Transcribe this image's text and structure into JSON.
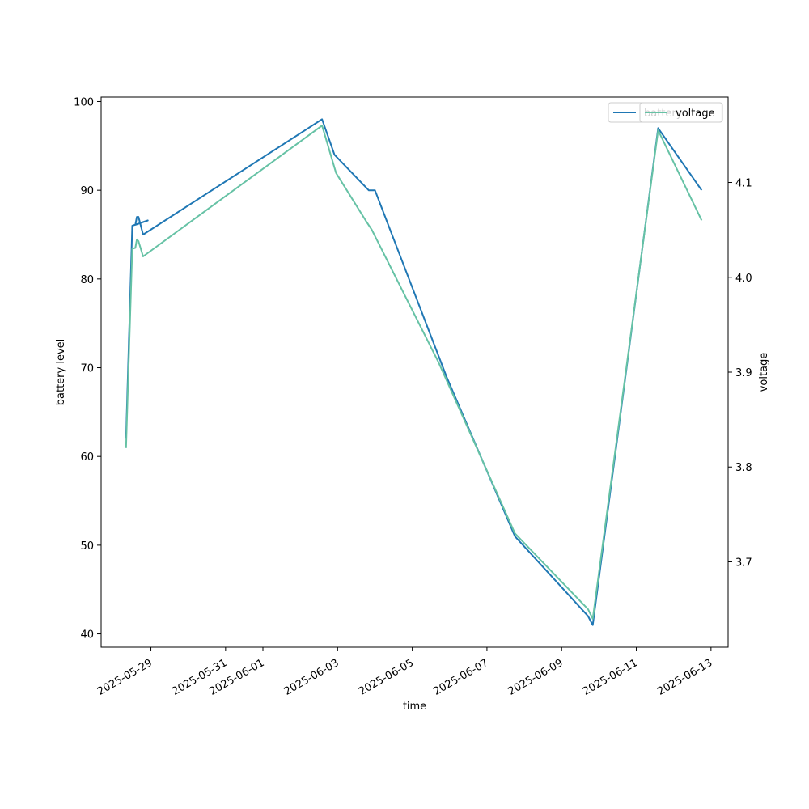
{
  "chart_data": {
    "type": "line",
    "xlabel": "time",
    "ylabel_left": "battery level",
    "ylabel_right": "voltage",
    "xlim": [
      "2025-05-27T16:00",
      "2025-06-13T11:00"
    ],
    "ylim_left": [
      38.5,
      100.5
    ],
    "ylim_right": [
      3.61,
      4.19
    ],
    "x_ticks": [
      "2025-05-29",
      "2025-05-31",
      "2025-06-01",
      "2025-06-03",
      "2025-06-05",
      "2025-06-07",
      "2025-06-09",
      "2025-06-11",
      "2025-06-13"
    ],
    "y_ticks_left": [
      40,
      50,
      60,
      70,
      80,
      90,
      100
    ],
    "y_ticks_right": [
      3.7,
      3.8,
      3.9,
      4.0,
      4.1
    ],
    "grid": false,
    "legend_placement": "top-right",
    "series": [
      {
        "name": "battery",
        "axis": "left",
        "color": "#1f77b4",
        "points": [
          [
            "2025-05-28T08:00",
            62
          ],
          [
            "2025-05-28T12:00",
            86
          ],
          [
            "2025-05-28T22:00",
            86.6
          ],
          [
            "2025-05-28T14:00",
            86.1
          ],
          [
            "2025-05-28T15:00",
            87
          ],
          [
            "2025-05-28T16:00",
            87
          ],
          [
            "2025-05-28T19:00",
            85
          ],
          [
            "2025-06-02T14:00",
            98
          ],
          [
            "2025-06-02T22:00",
            94
          ],
          [
            "2025-06-03T20:00",
            90
          ],
          [
            "2025-06-04T00:00",
            90
          ],
          [
            "2025-06-05T22:00",
            69
          ],
          [
            "2025-06-07T18:00",
            51
          ],
          [
            "2025-06-09T17:00",
            42
          ],
          [
            "2025-06-09T20:00",
            41
          ],
          [
            "2025-06-11T14:00",
            97
          ],
          [
            "2025-06-12T18:00",
            90
          ]
        ]
      },
      {
        "name": "voltage",
        "axis": "right",
        "color": "#66c2a5",
        "points": [
          [
            "2025-05-28T08:00",
            3.82
          ],
          [
            "2025-05-28T12:00",
            4.03
          ],
          [
            "2025-05-28T14:00",
            4.031
          ],
          [
            "2025-05-28T15:00",
            4.04
          ],
          [
            "2025-05-28T16:00",
            4.038
          ],
          [
            "2025-05-28T19:00",
            4.022
          ],
          [
            "2025-06-02T14:00",
            4.16
          ],
          [
            "2025-06-02T23:00",
            4.11
          ],
          [
            "2025-06-03T18:00",
            4.06
          ],
          [
            "2025-06-03T22:00",
            4.05
          ],
          [
            "2025-06-05T17:00",
            3.91
          ],
          [
            "2025-06-07T18:00",
            3.73
          ],
          [
            "2025-06-09T17:00",
            3.65
          ],
          [
            "2025-06-09T20:00",
            3.64
          ],
          [
            "2025-06-11T14:00",
            4.155
          ],
          [
            "2025-06-12T18:00",
            4.06
          ]
        ]
      }
    ]
  }
}
